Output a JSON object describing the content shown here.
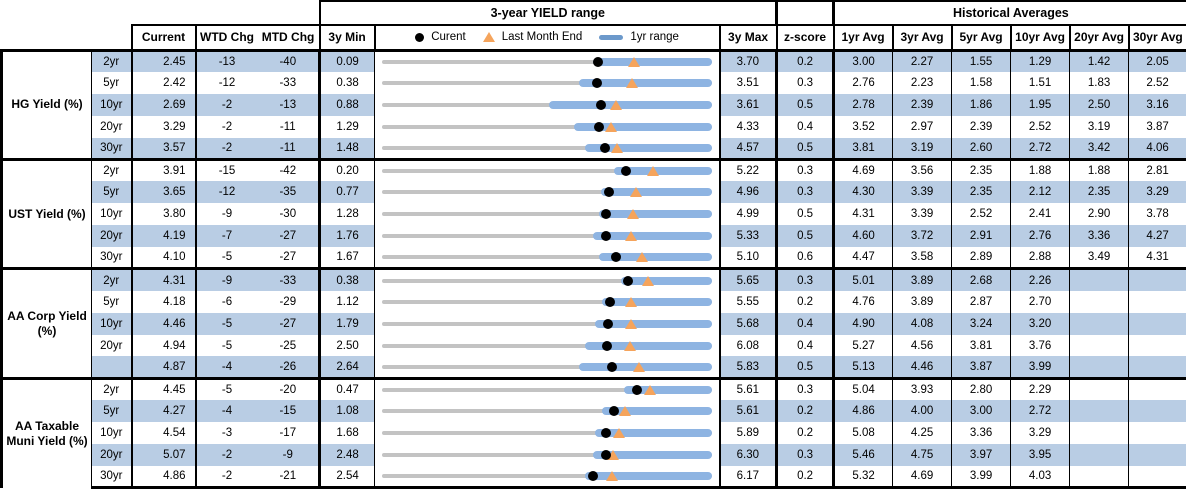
{
  "header": {
    "range_title": "3-year YIELD range",
    "hist_title": "Historical Averages",
    "col_current": "Current",
    "col_wtd": "WTD Chg",
    "col_mtd": "MTD Chg",
    "col_min": "3y Min",
    "col_max": "3y Max",
    "col_z": "z-score",
    "avg_cols": [
      "1yr Avg",
      "3yr Avg",
      "5yr Avg",
      "10yr Avg",
      "20yr Avg",
      "30yr Avg"
    ],
    "legend": {
      "current": "Curent",
      "last_month": "Last Month End",
      "range": "1yr range"
    }
  },
  "colors": {
    "row_band": "#b9cde4",
    "bar_1yr_range": "#8eb4e2",
    "track_3yr_range": "#c3c3c3",
    "current_dot": "#000000",
    "last_month_triangle": "#f5a45c"
  },
  "chart_data": {
    "type": "table",
    "title": "3-year YIELD range with historical averages",
    "note": "Each row renders a range strip: gray track = 3y min..max, blue bar = 1yr range (low estimated from pixels, high = 3y max), black dot = current, orange triangle = last month end (current - MTD chg/100).",
    "groups": [
      {
        "label": "HG Yield (%)",
        "rows": [
          {
            "tenor": "2yr",
            "current": "2.45",
            "wtd": "-13",
            "mtd": "-40",
            "min": "0.09",
            "max": "3.70",
            "z": "0.2",
            "bar_lo": 2.4,
            "avgs": [
              "3.00",
              "2.27",
              "1.55",
              "1.29",
              "1.42",
              "2.05"
            ]
          },
          {
            "tenor": "5yr",
            "current": "2.42",
            "wtd": "-12",
            "mtd": "-33",
            "min": "0.38",
            "max": "3.51",
            "z": "0.3",
            "bar_lo": 2.25,
            "avgs": [
              "2.76",
              "2.23",
              "1.58",
              "1.51",
              "1.83",
              "2.52"
            ]
          },
          {
            "tenor": "10yr",
            "current": "2.69",
            "wtd": "-2",
            "mtd": "-13",
            "min": "0.88",
            "max": "3.61",
            "z": "0.5",
            "bar_lo": 2.26,
            "avgs": [
              "2.78",
              "2.39",
              "1.86",
              "1.95",
              "2.50",
              "3.16"
            ]
          },
          {
            "tenor": "20yr",
            "current": "3.29",
            "wtd": "-2",
            "mtd": "-11",
            "min": "1.29",
            "max": "4.33",
            "z": "0.4",
            "bar_lo": 3.06,
            "avgs": [
              "3.52",
              "2.97",
              "2.39",
              "2.52",
              "3.19",
              "3.87"
            ]
          },
          {
            "tenor": "30yr",
            "current": "3.57",
            "wtd": "-2",
            "mtd": "-11",
            "min": "1.48",
            "max": "4.57",
            "z": "0.5",
            "bar_lo": 3.38,
            "avgs": [
              "3.81",
              "3.19",
              "2.60",
              "2.72",
              "3.42",
              "4.06"
            ]
          }
        ]
      },
      {
        "label": "UST Yield (%)",
        "rows": [
          {
            "tenor": "2yr",
            "current": "3.91",
            "wtd": "-15",
            "mtd": "-42",
            "min": "0.20",
            "max": "5.22",
            "z": "0.3",
            "bar_lo": 3.74,
            "avgs": [
              "4.69",
              "3.56",
              "2.35",
              "1.88",
              "1.88",
              "2.81"
            ]
          },
          {
            "tenor": "5yr",
            "current": "3.65",
            "wtd": "-12",
            "mtd": "-35",
            "min": "0.77",
            "max": "4.96",
            "z": "0.3",
            "bar_lo": 3.55,
            "avgs": [
              "4.30",
              "3.39",
              "2.35",
              "2.12",
              "2.35",
              "3.29"
            ]
          },
          {
            "tenor": "10yr",
            "current": "3.80",
            "wtd": "-9",
            "mtd": "-30",
            "min": "1.28",
            "max": "4.99",
            "z": "0.5",
            "bar_lo": 3.72,
            "avgs": [
              "4.31",
              "3.39",
              "2.52",
              "2.41",
              "2.90",
              "3.78"
            ]
          },
          {
            "tenor": "20yr",
            "current": "4.19",
            "wtd": "-7",
            "mtd": "-27",
            "min": "1.76",
            "max": "5.33",
            "z": "0.5",
            "bar_lo": 4.05,
            "avgs": [
              "4.60",
              "3.72",
              "2.91",
              "2.76",
              "3.36",
              "4.27"
            ]
          },
          {
            "tenor": "30yr",
            "current": "4.10",
            "wtd": "-5",
            "mtd": "-27",
            "min": "1.67",
            "max": "5.10",
            "z": "0.6",
            "bar_lo": 3.93,
            "avgs": [
              "4.47",
              "3.58",
              "2.89",
              "2.88",
              "3.49",
              "4.31"
            ]
          }
        ]
      },
      {
        "label": "AA Corp Yield (%)",
        "rows": [
          {
            "tenor": "2yr",
            "current": "4.31",
            "wtd": "-9",
            "mtd": "-33",
            "min": "0.38",
            "max": "5.65",
            "z": "0.3",
            "bar_lo": 4.2,
            "avgs": [
              "5.01",
              "3.89",
              "2.68",
              "2.26",
              "",
              ""
            ]
          },
          {
            "tenor": "5yr",
            "current": "4.18",
            "wtd": "-6",
            "mtd": "-29",
            "min": "1.12",
            "max": "5.55",
            "z": "0.2",
            "bar_lo": 4.08,
            "avgs": [
              "4.76",
              "3.89",
              "2.87",
              "2.70",
              "",
              ""
            ]
          },
          {
            "tenor": "10yr",
            "current": "4.46",
            "wtd": "-5",
            "mtd": "-27",
            "min": "1.79",
            "max": "5.68",
            "z": "0.4",
            "bar_lo": 4.3,
            "avgs": [
              "4.90",
              "4.08",
              "3.24",
              "3.20",
              "",
              ""
            ]
          },
          {
            "tenor": "20yr",
            "current": "4.94",
            "wtd": "-5",
            "mtd": "-25",
            "min": "2.50",
            "max": "6.08",
            "z": "0.4",
            "bar_lo": 4.7,
            "avgs": [
              "5.27",
              "4.56",
              "3.81",
              "3.76",
              "",
              ""
            ]
          },
          {
            "tenor": "",
            "current": "4.87",
            "wtd": "-4",
            "mtd": "-26",
            "min": "2.64",
            "max": "5.83",
            "z": "0.5",
            "bar_lo": 4.55,
            "avgs": [
              "5.13",
              "4.46",
              "3.87",
              "3.99",
              "",
              ""
            ]
          }
        ]
      },
      {
        "label": "AA Taxable Muni Yield (%)",
        "rows": [
          {
            "tenor": "2yr",
            "current": "4.45",
            "wtd": "-5",
            "mtd": "-20",
            "min": "0.47",
            "max": "5.61",
            "z": "0.3",
            "bar_lo": 4.24,
            "avgs": [
              "5.04",
              "3.93",
              "2.80",
              "2.29",
              "",
              ""
            ]
          },
          {
            "tenor": "5yr",
            "current": "4.27",
            "wtd": "-4",
            "mtd": "-15",
            "min": "1.08",
            "max": "5.61",
            "z": "0.2",
            "bar_lo": 4.1,
            "avgs": [
              "4.86",
              "4.00",
              "3.00",
              "2.72",
              "",
              ""
            ]
          },
          {
            "tenor": "10yr",
            "current": "4.54",
            "wtd": "-3",
            "mtd": "-17",
            "min": "1.68",
            "max": "5.89",
            "z": "0.2",
            "bar_lo": 4.4,
            "avgs": [
              "5.08",
              "4.25",
              "3.36",
              "3.29",
              "",
              ""
            ]
          },
          {
            "tenor": "20yr",
            "current": "5.07",
            "wtd": "-2",
            "mtd": "-9",
            "min": "2.48",
            "max": "6.30",
            "z": "0.3",
            "bar_lo": 4.93,
            "avgs": [
              "5.46",
              "4.75",
              "3.97",
              "3.95",
              "",
              ""
            ]
          },
          {
            "tenor": "30yr",
            "current": "4.86",
            "wtd": "-2",
            "mtd": "-21",
            "min": "2.54",
            "max": "6.17",
            "z": "0.2",
            "bar_lo": 4.77,
            "avgs": [
              "5.32",
              "4.69",
              "3.99",
              "4.03",
              "",
              ""
            ]
          }
        ]
      }
    ]
  }
}
